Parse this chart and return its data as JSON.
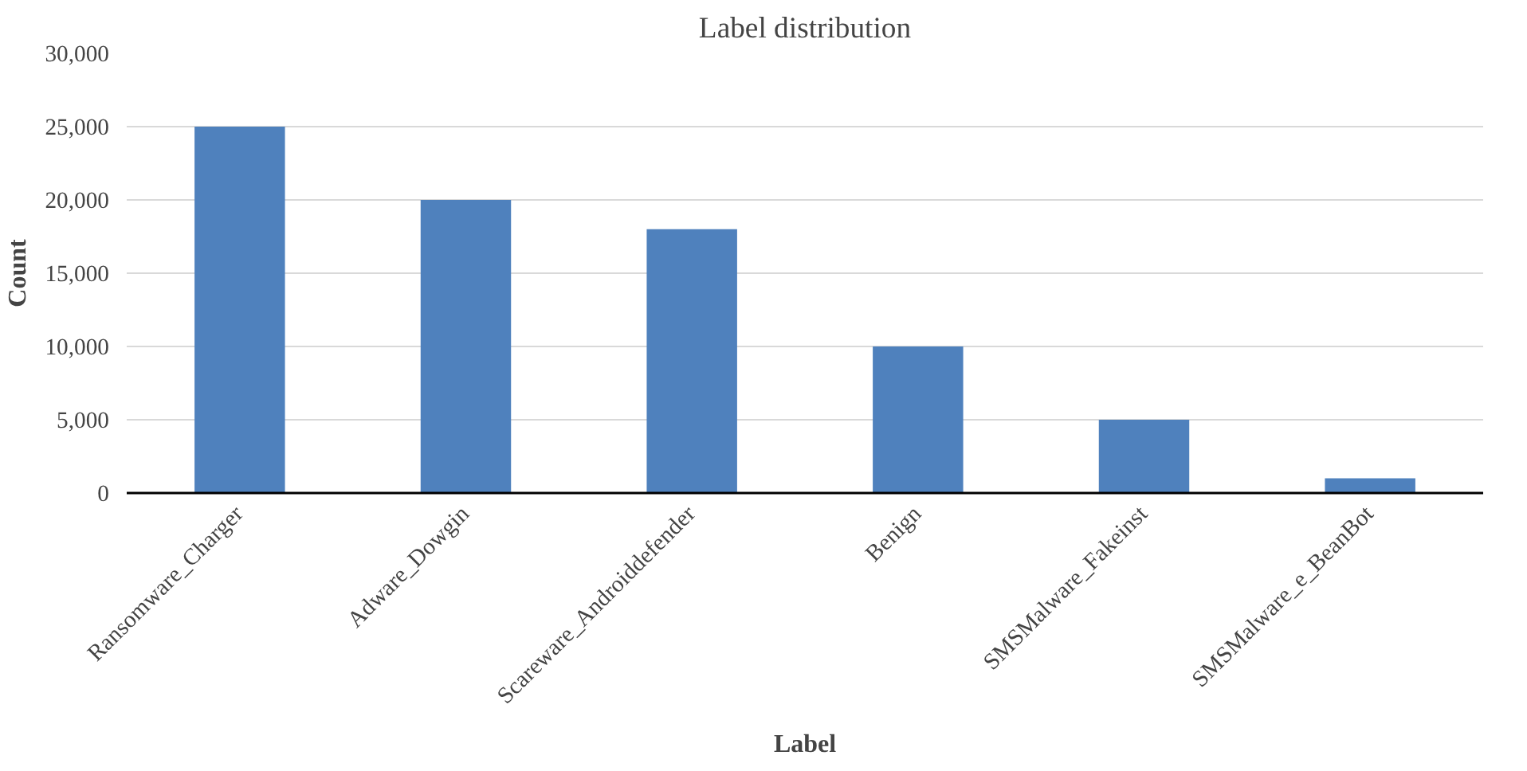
{
  "chart_data": {
    "type": "bar",
    "title": "Label distribution",
    "xlabel": "Label",
    "ylabel": "Count",
    "categories": [
      "Ransomware_Charger",
      "Adware_Dowgin",
      "Scareware_Androiddefender",
      "Benign",
      "SMSMalware_Fakeinst",
      "SMSMalware_e_BeanBot"
    ],
    "values": [
      25000,
      20000,
      18000,
      10000,
      5000,
      1000
    ],
    "color": "#4f81bd",
    "ylim": [
      0,
      30000
    ],
    "yticks": [
      {
        "value": 0,
        "label": "0"
      },
      {
        "value": 5000,
        "label": "5,000"
      },
      {
        "value": 10000,
        "label": "10,000"
      },
      {
        "value": 15000,
        "label": "15,000"
      },
      {
        "value": 20000,
        "label": "20,000"
      },
      {
        "value": 25000,
        "label": "25,000"
      },
      {
        "value": 30000,
        "label": "30,000"
      }
    ],
    "grid": "y"
  }
}
